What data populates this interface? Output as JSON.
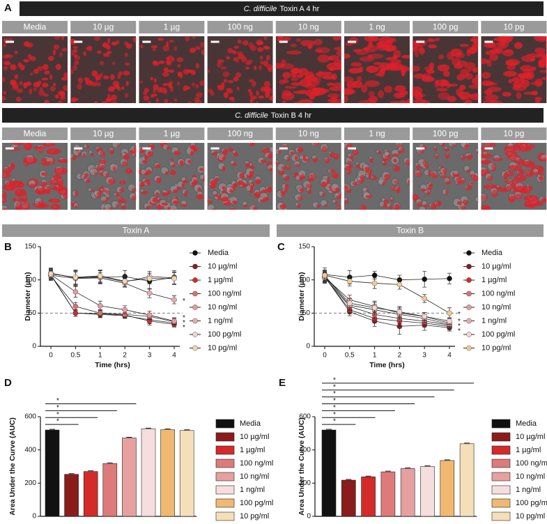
{
  "figure": {
    "panel": "A",
    "rows": [
      {
        "title_italic": "C. difficile",
        "title": "Toxin A 4 hr",
        "labels": [
          "Media",
          "10 µg",
          "1 µg",
          "100 ng",
          "10 ng",
          "1 ng",
          "100 pg",
          "10 pg"
        ]
      },
      {
        "title_italic": "C. difficile",
        "title": "Toxin B 4 hr",
        "labels": [
          "Media",
          "10 µg",
          "1 µg",
          "100 ng",
          "10 ng",
          "1 ng",
          "100 pg",
          "10 pg"
        ]
      }
    ]
  },
  "chart_data": [
    {
      "type": "line",
      "panel": "B",
      "header": "Toxin A",
      "xlabel": "Time (hrs)",
      "ylabel": "Diameter (µm)",
      "categories": [
        "0",
        "0.5",
        "1",
        "2",
        "3",
        "4"
      ],
      "ylim": [
        0,
        150
      ],
      "yticks": [
        0,
        50,
        100,
        150
      ],
      "reference_line": 50,
      "annotations": [
        "*",
        "*",
        "*",
        "*"
      ],
      "series": [
        {
          "name": "Media",
          "color": "#111111",
          "values": [
            110,
            103,
            104,
            105,
            98,
            104
          ],
          "errors": [
            8,
            12,
            10,
            9,
            12,
            10
          ]
        },
        {
          "name": "10 µg/ml",
          "color": "#8b1c1c",
          "values": [
            108,
            50,
            48,
            46,
            40,
            35
          ],
          "errors": [
            6,
            5,
            5,
            4,
            6,
            5
          ]
        },
        {
          "name": "1 µg/ml",
          "color": "#d42a2a",
          "values": [
            107,
            50,
            49,
            47,
            38,
            33
          ],
          "errors": [
            6,
            5,
            5,
            4,
            6,
            4
          ]
        },
        {
          "name": "100 ng/ml",
          "color": "#dd6f6f",
          "values": [
            106,
            60,
            50,
            48,
            45,
            37
          ],
          "errors": [
            7,
            6,
            5,
            5,
            5,
            5
          ]
        },
        {
          "name": "10 ng/ml",
          "color": "#e59a9a",
          "values": [
            108,
            82,
            61,
            55,
            47,
            38
          ],
          "errors": [
            7,
            8,
            7,
            6,
            6,
            5
          ]
        },
        {
          "name": "1 ng/ml",
          "color": "#eaaaaa",
          "values": [
            107,
            102,
            103,
            95,
            80,
            70
          ],
          "errors": [
            7,
            10,
            8,
            6,
            7,
            6
          ]
        },
        {
          "name": "100 pg/ml",
          "color": "#f1d5d5",
          "values": [
            110,
            103,
            105,
            97,
            105,
            103
          ],
          "errors": [
            7,
            10,
            9,
            8,
            8,
            9
          ]
        },
        {
          "name": "10 pg/ml",
          "color": "#f2d6a8",
          "values": [
            109,
            104,
            106,
            98,
            102,
            102
          ],
          "errors": [
            7,
            10,
            9,
            8,
            8,
            9
          ]
        }
      ]
    },
    {
      "type": "line",
      "panel": "C",
      "header": "Toxin B",
      "xlabel": "Time (hrs)",
      "ylabel": "Diameter (µm)",
      "categories": [
        "0",
        "0.5",
        "1",
        "2",
        "3",
        "4"
      ],
      "ylim": [
        0,
        150
      ],
      "yticks": [
        0,
        50,
        100,
        150
      ],
      "reference_line": 50,
      "annotations": [
        "*",
        "*",
        "*",
        "*"
      ],
      "series": [
        {
          "name": "Media",
          "color": "#111111",
          "values": [
            108,
            104,
            107,
            100,
            101,
            102
          ],
          "errors": [
            10,
            10,
            6,
            7,
            12,
            8
          ]
        },
        {
          "name": "10 µg/ml",
          "color": "#8b1c1c",
          "values": [
            105,
            52,
            38,
            30,
            32,
            28
          ],
          "errors": [
            8,
            6,
            8,
            12,
            8,
            5
          ]
        },
        {
          "name": "1 µg/ml",
          "color": "#d42a2a",
          "values": [
            104,
            55,
            42,
            38,
            35,
            30
          ],
          "errors": [
            8,
            6,
            7,
            8,
            6,
            5
          ]
        },
        {
          "name": "100 ng/ml",
          "color": "#dd6f6f",
          "values": [
            103,
            60,
            48,
            42,
            38,
            32
          ],
          "errors": [
            8,
            6,
            7,
            8,
            6,
            5
          ]
        },
        {
          "name": "10 ng/ml",
          "color": "#e59a9a",
          "values": [
            105,
            62,
            55,
            48,
            42,
            33
          ],
          "errors": [
            8,
            7,
            8,
            8,
            6,
            5
          ]
        },
        {
          "name": "1 ng/ml",
          "color": "#eaaaaa",
          "values": [
            104,
            70,
            60,
            50,
            45,
            35
          ],
          "errors": [
            8,
            7,
            8,
            8,
            6,
            5
          ]
        },
        {
          "name": "100 pg/ml",
          "color": "#f1d5d5",
          "values": [
            106,
            65,
            58,
            52,
            45,
            38
          ],
          "errors": [
            8,
            7,
            8,
            8,
            6,
            5
          ]
        },
        {
          "name": "10 pg/ml",
          "color": "#f2c890",
          "values": [
            107,
            98,
            95,
            93,
            72,
            50
          ],
          "errors": [
            8,
            7,
            8,
            7,
            6,
            8
          ]
        }
      ]
    },
    {
      "type": "bar",
      "panel": "D",
      "ylabel": "Area Under the Curve (AUC)",
      "categories": [
        "Media",
        "10 µg/ml",
        "1 µg/ml",
        "100 ng/ml",
        "10 ng/ml",
        "1 ng/ml",
        "100 pg/ml",
        "10 pg/ml"
      ],
      "values": [
        520,
        253,
        270,
        318,
        472,
        527,
        522,
        517
      ],
      "colors": [
        "#111111",
        "#8b1c1c",
        "#d42a2a",
        "#de7a7a",
        "#e6a0a0",
        "#f6dede",
        "#f0b870",
        "#f5dfb8"
      ],
      "ylim": [
        0,
        600
      ],
      "yticks": [
        0,
        200,
        400,
        600
      ],
      "annotations": [
        "*",
        "*",
        "*",
        "*"
      ]
    },
    {
      "type": "bar",
      "panel": "E",
      "ylabel": "Area Under the Curve (AUC)",
      "categories": [
        "Media",
        "10 µg/ml",
        "1 µg/ml",
        "100 ng/ml",
        "10 ng/ml",
        "1 ng/ml",
        "100 pg/ml",
        "10 pg/ml"
      ],
      "values": [
        520,
        218,
        238,
        268,
        288,
        300,
        336,
        437
      ],
      "colors": [
        "#111111",
        "#8b1c1c",
        "#d42a2a",
        "#de7a7a",
        "#e6a0a0",
        "#f6dede",
        "#f0b870",
        "#f5dfb8"
      ],
      "ylim": [
        0,
        600
      ],
      "yticks": [
        0,
        200,
        400,
        600
      ],
      "annotations": [
        "*",
        "*",
        "*",
        "*",
        "*",
        "*",
        "*"
      ]
    }
  ]
}
